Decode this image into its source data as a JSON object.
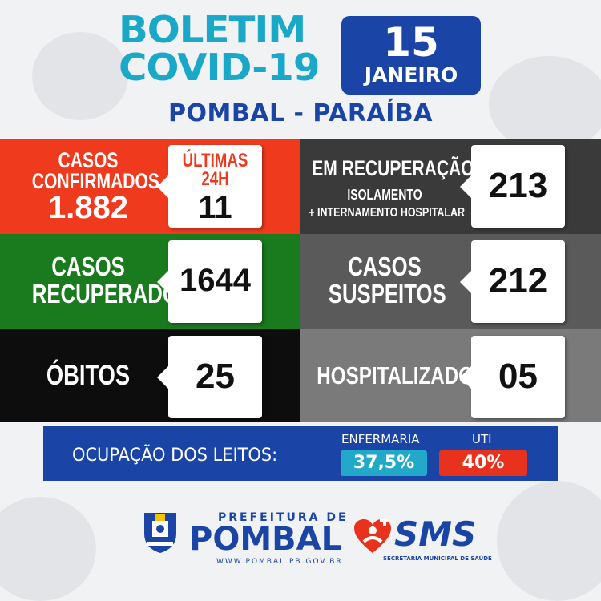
{
  "header": {
    "title_line1": "BOLETIM",
    "title_line2": "COVID-19",
    "day": "15",
    "month": "JANEIRO",
    "city": "POMBAL - PARAÍBA"
  },
  "confirmed": {
    "label_line1": "CASOS",
    "label_line2": "CONFIRMADOS",
    "value": "1.882",
    "last_label_line1": "ÚLTIMAS",
    "last_label_line2": "24H",
    "last_value": "11"
  },
  "recovering": {
    "label": "EM RECUPERAÇÃO",
    "sub1": "ISOLAMENTO",
    "sub2": "+ INTERNAMENTO HOSPITALAR",
    "value": "213"
  },
  "recovered": {
    "label_line1": "CASOS",
    "label_line2": "RECUPERADOS",
    "value": "1644"
  },
  "suspected": {
    "label_line1": "CASOS",
    "label_line2": "SUSPEITOS",
    "value": "212"
  },
  "deaths": {
    "label": "ÓBITOS",
    "value": "25"
  },
  "hospitalized": {
    "label": "HOSPITALIZADOS",
    "value": "05"
  },
  "beds": {
    "label": "OCUPAÇÃO DOS LEITOS:",
    "ward_label": "ENFERMARIA",
    "ward_value": "37,5%",
    "icu_label": "UTI",
    "icu_value": "40%"
  },
  "footer": {
    "prefeitura": "PREFEITURA DE",
    "pombal": "POMBAL",
    "site": "WWW.POMBAL.PB.GOV.BR",
    "sms": "SMS",
    "sms_sub": "SECRETARIA MUNICIPAL DE SAÚDE"
  },
  "colors": {
    "red": "#f03a1e",
    "green": "#1a7a1e",
    "black": "#0d0d0d",
    "dark_gray": "#3a3a3a",
    "gray": "#5a5a5a",
    "mid_gray": "#7a7a7a",
    "blue": "#1a44a6",
    "cyan": "#1aa8c8",
    "ward_badge": "#22a8c8",
    "icu_badge": "#e8321e"
  }
}
